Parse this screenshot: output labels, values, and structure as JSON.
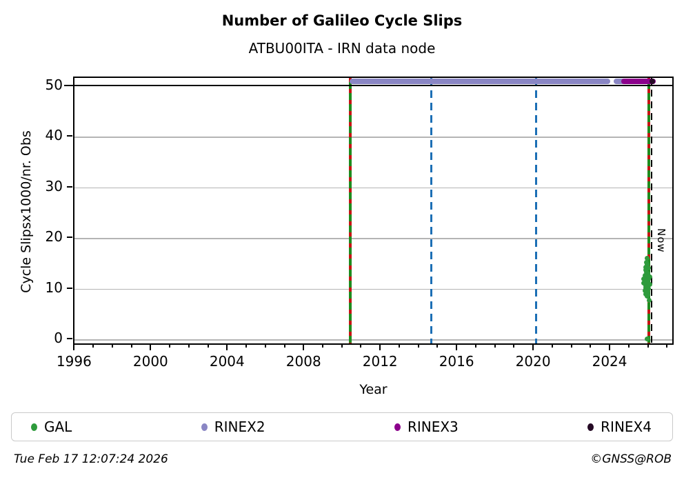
{
  "title": "Number of Galileo Cycle Slips",
  "subtitle": "ATBU00ITA - IRN data node",
  "footer": {
    "timestamp": "Tue Feb 17 12:07:24 2026",
    "credit": "©GNSS@ROB"
  },
  "chart_data": {
    "type": "scatter",
    "title": "Number of Galileo Cycle Slips",
    "subtitle": "ATBU00ITA - IRN data node",
    "xlabel": "Year",
    "ylabel": "Cycle Slipsx1000/nr. Obs",
    "xlim": [
      1995.95,
      2027.35
    ],
    "ylim": [
      -1.2,
      51.7
    ],
    "xticks_major": [
      1996,
      2000,
      2004,
      2008,
      2012,
      2016,
      2020,
      2024
    ],
    "xticks_minor_step": 1,
    "yticks": [
      0,
      10,
      20,
      30,
      40,
      50
    ],
    "grid": "horizontal gray gridlines at yticks 0-40, black line at 50",
    "gridline_color": "#b4b4b4",
    "hline": {
      "y": 50,
      "color": "#000000",
      "style": "solid"
    },
    "vlines": [
      {
        "x": 2010.35,
        "style": "dashdot",
        "colors": [
          "#1e8c1e",
          "#c81414"
        ],
        "name": "gal-data-start"
      },
      {
        "x": 2014.6,
        "style": "dashed",
        "colors": [
          "#1c6fb5"
        ],
        "name": "event-2014"
      },
      {
        "x": 2020.1,
        "style": "dashed",
        "colors": [
          "#1c6fb5"
        ],
        "name": "event-2020"
      },
      {
        "x": 2025.95,
        "style": "dashdot",
        "colors": [
          "#1e8c1e",
          "#c81414"
        ],
        "name": "recent-event"
      },
      {
        "x": 2026.13,
        "style": "dashed",
        "colors": [
          "#000000"
        ],
        "name": "now",
        "label": "Now"
      }
    ],
    "now_label": "Now",
    "series": [
      {
        "name": "RINEX2",
        "color": "#8a86c4",
        "marker_value": 51,
        "runs": [
          [
            2010.35,
            2023.95
          ],
          [
            2024.15,
            2024.75
          ]
        ]
      },
      {
        "name": "RINEX3",
        "color": "#8b008b",
        "marker_value": 51,
        "runs": [
          [
            2024.55,
            2026.35
          ]
        ]
      },
      {
        "name": "RINEX4",
        "color": "#250a25",
        "marker_value": 51,
        "runs": [
          [
            2026.0,
            2026.3
          ]
        ]
      },
      {
        "name": "GAL",
        "color": "#2e9b3c",
        "points": [
          [
            2025.88,
            16.1
          ],
          [
            2025.85,
            15.3
          ],
          [
            2025.9,
            14.9
          ],
          [
            2025.82,
            14.4
          ],
          [
            2025.95,
            14.2
          ],
          [
            2025.8,
            13.8
          ],
          [
            2025.87,
            13.4
          ],
          [
            2025.93,
            13.1
          ],
          [
            2025.78,
            12.8
          ],
          [
            2025.9,
            12.5
          ],
          [
            2025.84,
            12.2
          ],
          [
            2025.97,
            12.0
          ],
          [
            2025.8,
            11.8
          ],
          [
            2025.88,
            11.6
          ],
          [
            2025.92,
            11.4
          ],
          [
            2025.76,
            11.2
          ],
          [
            2025.85,
            11.0
          ],
          [
            2025.95,
            10.9
          ],
          [
            2025.8,
            10.7
          ],
          [
            2025.9,
            10.5
          ],
          [
            2025.83,
            10.3
          ],
          [
            2025.96,
            10.2
          ],
          [
            2025.87,
            10.0
          ],
          [
            2025.78,
            9.8
          ],
          [
            2025.92,
            9.6
          ],
          [
            2025.85,
            9.4
          ],
          [
            2025.8,
            9.1
          ],
          [
            2025.94,
            8.9
          ],
          [
            2025.88,
            8.6
          ],
          [
            2026.0,
            7.9
          ],
          [
            2025.7,
            12.0
          ],
          [
            2025.72,
            11.3
          ],
          [
            2026.05,
            11.0
          ],
          [
            2026.02,
            12.4
          ],
          [
            2025.9,
            0.2
          ]
        ]
      }
    ],
    "legend": {
      "position": "bottom",
      "entries": [
        {
          "label": "GAL",
          "color": "#2e9b3c"
        },
        {
          "label": "RINEX2",
          "color": "#8a86c4"
        },
        {
          "label": "RINEX3",
          "color": "#8b008b"
        },
        {
          "label": "RINEX4",
          "color": "#250a25"
        }
      ]
    }
  }
}
